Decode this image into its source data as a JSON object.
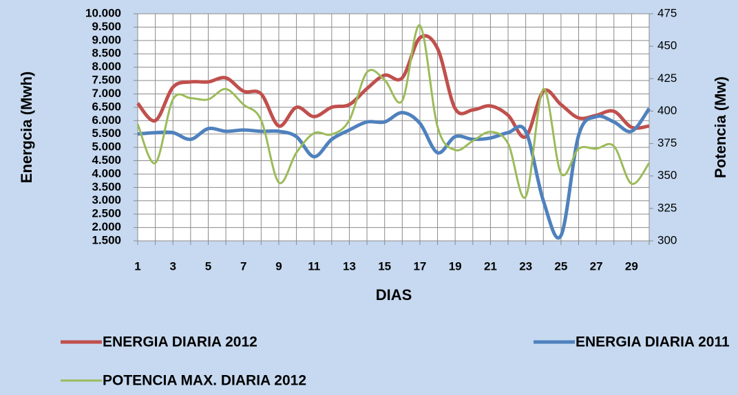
{
  "chart_data": {
    "type": "line",
    "x_label": "DIAS",
    "y_label": "Energcia (Mwh)",
    "y2_label": "Potencia (Mw)",
    "categories": [
      "1",
      null,
      "3",
      null,
      "5",
      null,
      "7",
      null,
      "9",
      null,
      "11",
      null,
      "13",
      null,
      "15",
      null,
      "17",
      null,
      "19",
      null,
      "21",
      null,
      "23",
      null,
      "25",
      null,
      "27",
      null,
      "29",
      null
    ],
    "ylim": [
      1500,
      10000
    ],
    "yticks": [
      {
        "value": 1500,
        "label": "1.500"
      },
      {
        "value": 2000,
        "label": "2.000"
      },
      {
        "value": 2500,
        "label": "2.500"
      },
      {
        "value": 3000,
        "label": "3.000"
      },
      {
        "value": 3500,
        "label": "3.500"
      },
      {
        "value": 4000,
        "label": "4.000"
      },
      {
        "value": 4500,
        "label": "4.500"
      },
      {
        "value": 5000,
        "label": "5.000"
      },
      {
        "value": 5500,
        "label": "5.500"
      },
      {
        "value": 6000,
        "label": "6.000"
      },
      {
        "value": 6500,
        "label": "6.500"
      },
      {
        "value": 7000,
        "label": "7.000"
      },
      {
        "value": 7500,
        "label": "7.500"
      },
      {
        "value": 8000,
        "label": "8.000"
      },
      {
        "value": 8500,
        "label": "8.500"
      },
      {
        "value": 9000,
        "label": "9.000"
      },
      {
        "value": 9500,
        "label": "9.500"
      },
      {
        "value": 10000,
        "label": "10.000"
      }
    ],
    "y2lim": [
      300,
      475
    ],
    "y2ticks": [
      300,
      325,
      350,
      375,
      400,
      425,
      450,
      475
    ],
    "grid": true,
    "series": [
      {
        "name": "ENERGIA DIARIA 2012",
        "color": "#c0504d",
        "values": [
          6650,
          6000,
          7250,
          7450,
          7450,
          7600,
          7100,
          7000,
          5800,
          6500,
          6150,
          6500,
          6600,
          7200,
          7700,
          7600,
          9100,
          8700,
          6450,
          6400,
          6550,
          6200,
          5400,
          7100,
          6600,
          6100,
          6200,
          6350,
          5750,
          5800
        ]
      },
      {
        "name": "ENERGIA DIARIA 2011",
        "color": "#4f81bd",
        "values": [
          5500,
          5550,
          5550,
          5300,
          5700,
          5600,
          5650,
          5600,
          5600,
          5400,
          4650,
          5300,
          5650,
          5950,
          5950,
          6300,
          5900,
          4800,
          5400,
          5300,
          5350,
          5550,
          5600,
          3000,
          1700,
          5450,
          6150,
          5950,
          5600,
          6450
        ]
      },
      {
        "name": "POTENCIA MAX. DIARIA 2012",
        "color": "#9bbb59",
        "axis": "y2",
        "values": [
          390,
          360,
          409,
          410,
          409,
          417,
          405,
          393,
          345,
          368,
          383,
          382,
          393,
          430,
          424,
          408,
          466,
          388,
          370,
          377,
          384,
          375,
          334,
          417,
          352,
          371,
          371,
          373,
          344,
          360
        ]
      }
    ]
  }
}
